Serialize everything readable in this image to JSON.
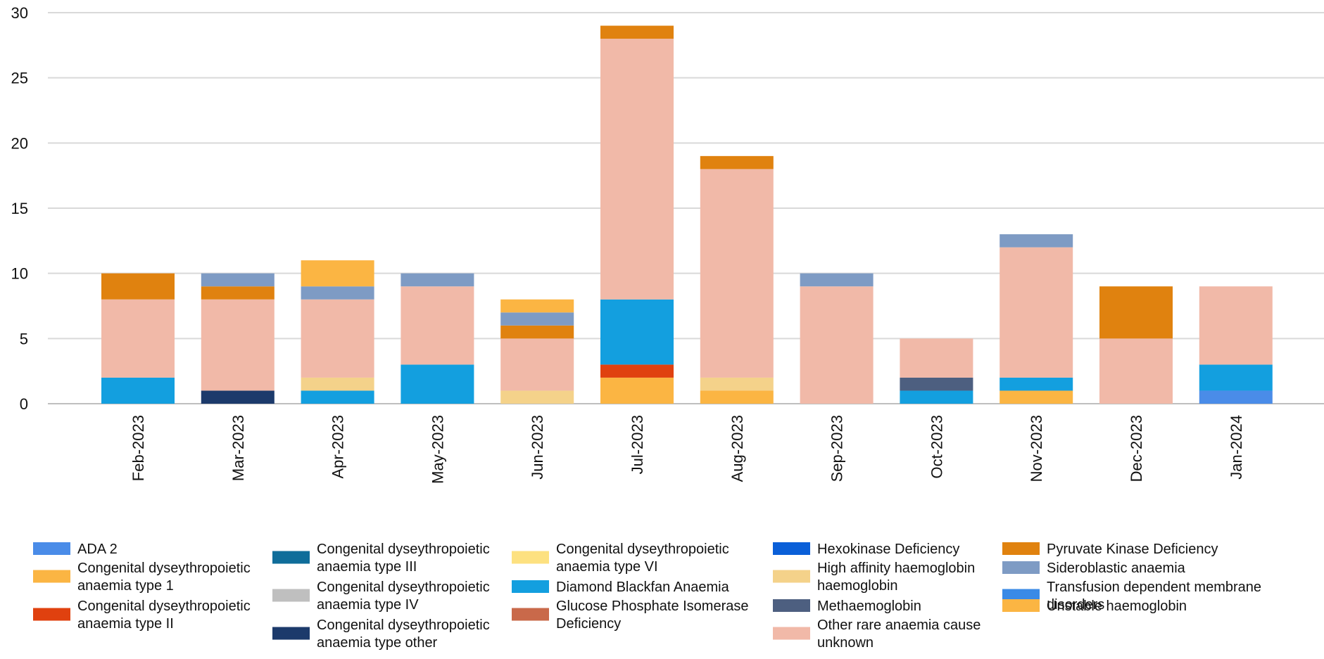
{
  "chart_data": {
    "type": "bar",
    "stacked": true,
    "title": "",
    "xlabel": "",
    "ylabel": "",
    "ylim": [
      0,
      30
    ],
    "yticks": [
      0,
      5,
      10,
      15,
      20,
      25,
      30
    ],
    "grid": true,
    "legend_position": "bottom",
    "categories": [
      "Feb-2023",
      "Mar-2023",
      "Apr-2023",
      "May-2023",
      "Jun-2023",
      "Jul-2023",
      "Aug-2023",
      "Sep-2023",
      "Oct-2023",
      "Nov-2023",
      "Dec-2023",
      "Jan-2024"
    ],
    "series": [
      {
        "name": "ADA 2",
        "color": "#4a8ce8",
        "values": [
          0,
          0,
          0,
          0,
          0,
          0,
          0,
          0,
          0,
          0,
          0,
          1
        ]
      },
      {
        "name": "Congenital dyseythropoietic anaemia type 1",
        "color": "#fbb543",
        "values": [
          0,
          0,
          0,
          0,
          0,
          2,
          1,
          0,
          0,
          1,
          0,
          0
        ]
      },
      {
        "name": "Congenital dyseythropoietic anaemia type II",
        "color": "#e0410f",
        "values": [
          0,
          0,
          0,
          0,
          0,
          1,
          0,
          0,
          0,
          0,
          0,
          0
        ]
      },
      {
        "name": "Congenital dyseythropoietic anaemia type III",
        "color": "#0f6d9a",
        "values": [
          0,
          0,
          0,
          0,
          0,
          0,
          0,
          0,
          0,
          0,
          0,
          0
        ]
      },
      {
        "name": "Congenital dyseythropoietic anaemia type IV",
        "color": "#bfbfbf",
        "values": [
          0,
          0,
          0,
          0,
          0,
          0,
          0,
          0,
          0,
          0,
          0,
          0
        ]
      },
      {
        "name": "Congenital dyseythropoietic anaemia type other",
        "color": "#1c3a6b",
        "values": [
          0,
          1,
          0,
          0,
          0,
          0,
          0,
          0,
          0,
          0,
          0,
          0
        ]
      },
      {
        "name": "Congenital dyseythropoietic anaemia type VI",
        "color": "#fde180",
        "values": [
          0,
          0,
          0,
          0,
          0,
          0,
          0,
          0,
          0,
          0,
          0,
          0
        ]
      },
      {
        "name": "Diamond Blackfan Anaemia",
        "color": "#139fdf",
        "values": [
          2,
          0,
          1,
          3,
          0,
          5,
          0,
          0,
          1,
          1,
          0,
          2
        ]
      },
      {
        "name": "Glucose Phosphate Isomerase Deficiency",
        "color": "#c9694a",
        "values": [
          0,
          0,
          0,
          0,
          0,
          0,
          0,
          0,
          0,
          0,
          0,
          0
        ]
      },
      {
        "name": "Hexokinase Deficiency",
        "color": "#0a5fd8",
        "values": [
          0,
          0,
          0,
          0,
          0,
          0,
          0,
          0,
          0,
          0,
          0,
          0
        ]
      },
      {
        "name": "High affinity haemoglobin haemoglobin",
        "color": "#f4d28a",
        "values": [
          0,
          0,
          1,
          0,
          1,
          0,
          1,
          0,
          0,
          0,
          0,
          0
        ]
      },
      {
        "name": "Methaemoglobin",
        "color": "#4d5f80",
        "values": [
          0,
          0,
          0,
          0,
          0,
          0,
          0,
          0,
          1,
          0,
          0,
          0
        ]
      },
      {
        "name": "Other rare anaemia cause unknown",
        "color": "#f1b9a8",
        "values": [
          6,
          7,
          6,
          6,
          4,
          20,
          16,
          9,
          3,
          10,
          5,
          6
        ]
      },
      {
        "name": "Pyruvate Kinase Deficiency",
        "color": "#e0820f",
        "values": [
          2,
          1,
          0,
          0,
          1,
          1,
          1,
          0,
          0,
          0,
          4,
          0
        ]
      },
      {
        "name": "Sideroblastic anaemia",
        "color": "#7e9bc4",
        "values": [
          0,
          1,
          1,
          1,
          1,
          0,
          0,
          1,
          0,
          1,
          0,
          0
        ]
      },
      {
        "name": "Transfusion dependent membrane disorders",
        "color": "#3a8ae6",
        "values": [
          0,
          0,
          0,
          0,
          0,
          0,
          0,
          0,
          0,
          0,
          0,
          0
        ]
      },
      {
        "name": "Unstable haemoglobin",
        "color": "#fbb543",
        "values": [
          0,
          0,
          2,
          0,
          1,
          0,
          0,
          0,
          0,
          0,
          0,
          0
        ]
      }
    ],
    "legend_lines": [
      [
        "ADA 2"
      ],
      [
        "Congenital dyseythropoietic",
        "anaemia type 1"
      ],
      [
        "Congenital dyseythropoietic",
        "anaemia type II"
      ],
      [
        "Congenital dyseythropoietic",
        "anaemia type III"
      ],
      [
        "Congenital dyseythropoietic",
        "anaemia type IV"
      ],
      [
        "Congenital dyseythropoietic",
        "anaemia type other"
      ],
      [
        "Congenital dyseythropoietic",
        "anaemia type VI"
      ],
      [
        "Diamond Blackfan Anaemia"
      ],
      [
        "Glucose Phosphate Isomerase",
        "Deficiency"
      ],
      [
        "Hexokinase Deficiency"
      ],
      [
        "High affinity haemoglobin",
        "haemoglobin"
      ],
      [
        "Methaemoglobin"
      ],
      [
        "Other rare anaemia cause",
        "unknown"
      ],
      [
        "Pyruvate Kinase Deficiency"
      ],
      [
        "Sideroblastic anaemia"
      ],
      [
        "Transfusion dependent membrane",
        "disorders"
      ],
      [
        "Unstable haemoglobin"
      ]
    ]
  }
}
